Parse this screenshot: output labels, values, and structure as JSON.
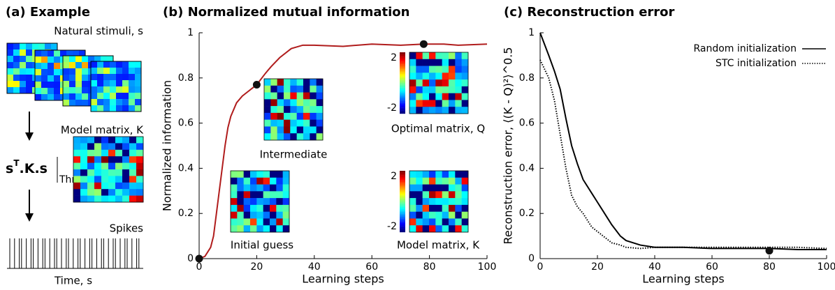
{
  "panel_a": {
    "title": "(a) Example",
    "stimuli_label": "Natural stimuli, s",
    "matrix_label": "Model matrix, K",
    "formula": "s",
    "formula_sup": "T",
    "formula_rest": ".K.s",
    "threshold": "Thr",
    "spikes_label": "Spikes",
    "time_label": "Time, s"
  },
  "chart_data": [
    {
      "type": "line",
      "title": "(b) Normalized mutual information",
      "xlabel": "Learning steps",
      "ylabel": "Normalized information",
      "x": [
        0,
        2,
        4,
        5,
        6,
        7,
        8,
        9,
        10,
        11,
        13,
        15,
        17,
        20,
        23,
        25,
        28,
        32,
        36,
        40,
        50,
        60,
        70,
        78,
        85,
        90,
        100
      ],
      "series": [
        {
          "color": "#b01c1c",
          "values": [
            0,
            0.01,
            0.05,
            0.1,
            0.2,
            0.3,
            0.4,
            0.5,
            0.58,
            0.63,
            0.69,
            0.72,
            0.74,
            0.77,
            0.82,
            0.85,
            0.89,
            0.93,
            0.945,
            0.945,
            0.94,
            0.95,
            0.945,
            0.95,
            0.95,
            0.945,
            0.95
          ]
        }
      ],
      "markers": {
        "x": [
          0,
          20,
          78
        ],
        "y": [
          0,
          0.77,
          0.95
        ]
      },
      "xlim": [
        0,
        100
      ],
      "ylim": [
        0,
        1
      ],
      "xticks": [
        0,
        20,
        40,
        60,
        80,
        100
      ],
      "yticks": [
        0,
        0.2,
        0.4,
        0.6,
        0.8,
        1
      ],
      "insets": [
        "Intermediate",
        "Optimal matrix, Q",
        "Initial guess",
        "Model matrix, K"
      ],
      "colorbar_ticks": [
        2,
        -2
      ]
    },
    {
      "type": "line",
      "title": "(c) Reconstruction error",
      "xlabel": "Learning steps",
      "ylabel": "Reconstruction error, ⟨(K - Q)²⟩^0.5",
      "x": [
        0,
        3,
        5,
        7,
        9,
        11,
        13,
        15,
        18,
        20,
        22,
        25,
        28,
        30,
        35,
        40,
        50,
        60,
        70,
        80,
        90,
        100
      ],
      "series": [
        {
          "name": "Random initialization",
          "color": "#000000",
          "dash": "solid",
          "values": [
            1,
            0.9,
            0.83,
            0.75,
            0.62,
            0.5,
            0.42,
            0.35,
            0.29,
            0.25,
            0.21,
            0.15,
            0.1,
            0.08,
            0.06,
            0.05,
            0.05,
            0.045,
            0.045,
            0.045,
            0.04,
            0.04
          ]
        },
        {
          "name": "STC initialization",
          "color": "#000000",
          "dash": "dotted",
          "values": [
            0.88,
            0.8,
            0.7,
            0.55,
            0.4,
            0.28,
            0.23,
            0.2,
            0.14,
            0.12,
            0.1,
            0.07,
            0.06,
            0.05,
            0.045,
            0.05,
            0.05,
            0.05,
            0.05,
            0.05,
            0.05,
            0.045
          ]
        }
      ],
      "markers": {
        "x": [
          80
        ],
        "y": [
          0.035
        ]
      },
      "xlim": [
        0,
        100
      ],
      "ylim": [
        0,
        1
      ],
      "xticks": [
        0,
        20,
        40,
        60,
        80,
        100
      ],
      "yticks": [
        0,
        0.2,
        0.4,
        0.6,
        0.8,
        1
      ]
    }
  ]
}
